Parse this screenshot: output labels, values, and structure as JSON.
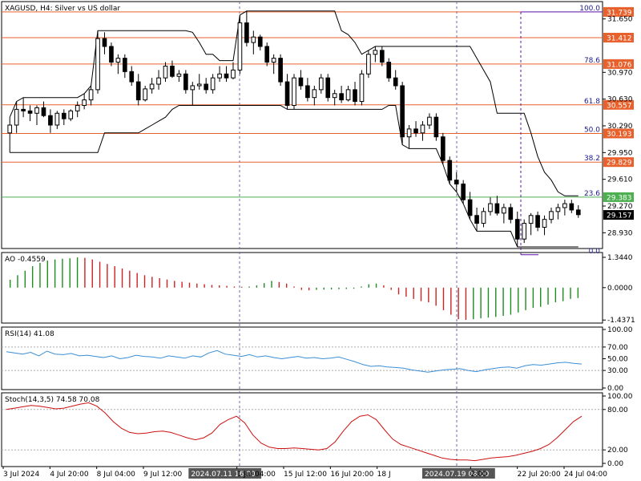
{
  "header": {
    "symbol_title": "XAGUSD, H4:  Silver vs US dollar",
    "ao_label": "AO -0.4559",
    "rsi_label": "RSI(14) 41.08",
    "stoch_label": "Stoch(14,3,5) 74.58 70.08"
  },
  "price_axis": {
    "ticks": [
      "31.650",
      "30.970",
      "30.630",
      "30.290",
      "29.950",
      "29.610",
      "29.270",
      "28.930"
    ],
    "current_price": "29.157",
    "ylim": [
      28.75,
      31.85
    ]
  },
  "ao_axis": {
    "ticks": [
      "1.3440",
      "0.0000",
      "-1.4371"
    ],
    "ylim": [
      -1.5,
      1.45
    ]
  },
  "rsi_axis": {
    "ticks": [
      "100.00",
      "70.00",
      "50.00",
      "30.00",
      "0.00"
    ]
  },
  "stoch_axis": {
    "ticks": [
      "100.00",
      "80.00",
      "20.00",
      "0.00"
    ]
  },
  "fibonacci": {
    "levels": [
      {
        "ratio": "100.0",
        "price": "31.739",
        "value": 31.739
      },
      {
        "ratio": "",
        "price": "31.412",
        "value": 31.412
      },
      {
        "ratio": "78.6",
        "price": "31.076",
        "value": 31.076
      },
      {
        "ratio": "61.8",
        "price": "30.557",
        "value": 30.557
      },
      {
        "ratio": "50.0",
        "price": "30.193",
        "value": 30.193
      },
      {
        "ratio": "38.2",
        "price": "29.829",
        "value": 29.829
      },
      {
        "ratio": "23.6",
        "price": "29.383",
        "value": 29.383
      },
      {
        "ratio": "0.0",
        "price": "",
        "value": 28.65
      }
    ]
  },
  "time_axis": {
    "labels": [
      "3 Jul 2024",
      "4 Jul 20:00",
      "8 Jul 04:00",
      "9 Jul 12:00",
      "2024.07.11 16:00",
      "1 Jul 04:00",
      "15 Jul 12:00",
      "16 Jul 20:00",
      "18 J",
      "2024.07.19 08:00",
      "2:00",
      "22 Jul 20:00",
      "24 Jul 04:00"
    ],
    "highlighted": [
      "2024.07.11 16:00",
      "2024.07.19 08:00"
    ]
  },
  "colors": {
    "bull": "#ffffff",
    "bear": "#000000",
    "fib": "#e8612c",
    "fib_green": "#4caf50",
    "fib_purple": "#5b0fa8",
    "ao_up": "#1e8b1e",
    "ao_down": "#cc2222",
    "rsi": "#3a8fd6",
    "stoch": "#cc1111",
    "grid": "#999999"
  },
  "chart_data": [
    {
      "type": "candlestick",
      "title": "XAGUSD, H4: Silver vs US dollar",
      "ylim": [
        28.75,
        31.85
      ],
      "candles": [
        [
          30.2,
          30.4,
          29.95,
          30.3
        ],
        [
          30.3,
          30.6,
          30.2,
          30.5
        ],
        [
          30.5,
          30.65,
          30.4,
          30.48
        ],
        [
          30.48,
          30.55,
          30.35,
          30.45
        ],
        [
          30.45,
          30.55,
          30.3,
          30.52
        ],
        [
          30.52,
          30.6,
          30.4,
          30.42
        ],
        [
          30.42,
          30.5,
          30.2,
          30.3
        ],
        [
          30.3,
          30.48,
          30.25,
          30.45
        ],
        [
          30.45,
          30.5,
          30.3,
          30.38
        ],
        [
          30.38,
          30.5,
          30.35,
          30.48
        ],
        [
          30.48,
          30.6,
          30.4,
          30.55
        ],
        [
          30.55,
          30.7,
          30.5,
          30.62
        ],
        [
          30.62,
          30.8,
          30.55,
          30.75
        ],
        [
          30.75,
          31.5,
          30.7,
          31.4
        ],
        [
          31.4,
          31.48,
          31.2,
          31.3
        ],
        [
          31.3,
          31.35,
          31.05,
          31.1
        ],
        [
          31.1,
          31.2,
          30.95,
          31.15
        ],
        [
          31.15,
          31.2,
          30.9,
          30.98
        ],
        [
          30.98,
          31.05,
          30.8,
          30.85
        ],
        [
          30.85,
          30.95,
          30.55,
          30.62
        ],
        [
          30.62,
          30.8,
          30.6,
          30.76
        ],
        [
          30.76,
          30.9,
          30.7,
          30.82
        ],
        [
          30.82,
          31.0,
          30.75,
          30.9
        ],
        [
          30.9,
          31.1,
          30.85,
          31.05
        ],
        [
          31.05,
          31.12,
          30.9,
          30.92
        ],
        [
          30.92,
          31.0,
          30.85,
          30.95
        ],
        [
          30.95,
          31.0,
          30.7,
          30.75
        ],
        [
          30.75,
          30.85,
          30.55,
          30.8
        ],
        [
          30.8,
          30.95,
          30.75,
          30.82
        ],
        [
          30.82,
          30.9,
          30.7,
          30.75
        ],
        [
          30.75,
          30.95,
          30.7,
          30.9
        ],
        [
          30.9,
          31.05,
          30.85,
          30.95
        ],
        [
          30.95,
          31.05,
          30.85,
          30.9
        ],
        [
          30.9,
          31.1,
          30.88,
          31.0
        ],
        [
          31.0,
          31.7,
          30.95,
          31.6
        ],
        [
          31.6,
          31.75,
          31.3,
          31.35
        ],
        [
          31.35,
          31.5,
          31.2,
          31.42
        ],
        [
          31.42,
          31.45,
          31.25,
          31.3
        ],
        [
          31.3,
          31.35,
          31.05,
          31.1
        ],
        [
          31.1,
          31.2,
          30.95,
          31.15
        ],
        [
          31.15,
          31.2,
          30.8,
          30.85
        ],
        [
          30.85,
          30.95,
          30.5,
          30.55
        ],
        [
          30.55,
          30.95,
          30.5,
          30.9
        ],
        [
          30.9,
          31.0,
          30.75,
          30.8
        ],
        [
          30.8,
          30.9,
          30.6,
          30.65
        ],
        [
          30.65,
          30.8,
          30.55,
          30.75
        ],
        [
          30.75,
          30.95,
          30.7,
          30.9
        ],
        [
          30.9,
          30.95,
          30.6,
          30.65
        ],
        [
          30.65,
          30.75,
          30.55,
          30.7
        ],
        [
          30.7,
          30.8,
          30.58,
          30.62
        ],
        [
          30.62,
          30.8,
          30.6,
          30.75
        ],
        [
          30.75,
          30.85,
          30.55,
          30.6
        ],
        [
          30.6,
          31.0,
          30.55,
          30.95
        ],
        [
          30.95,
          31.25,
          30.9,
          31.2
        ],
        [
          31.2,
          31.3,
          31.1,
          31.25
        ],
        [
          31.25,
          31.3,
          31.05,
          31.1
        ],
        [
          31.1,
          31.15,
          30.85,
          30.9
        ],
        [
          30.9,
          31.0,
          30.75,
          30.8
        ],
        [
          30.8,
          30.85,
          30.05,
          30.15
        ],
        [
          30.15,
          30.3,
          30.0,
          30.25
        ],
        [
          30.25,
          30.35,
          30.15,
          30.2
        ],
        [
          30.2,
          30.35,
          30.1,
          30.3
        ],
        [
          30.3,
          30.45,
          30.25,
          30.4
        ],
        [
          30.4,
          30.45,
          30.1,
          30.15
        ],
        [
          30.15,
          30.2,
          29.8,
          29.85
        ],
        [
          29.85,
          29.9,
          29.55,
          29.6
        ],
        [
          29.6,
          29.7,
          29.45,
          29.55
        ],
        [
          29.55,
          29.6,
          29.3,
          29.35
        ],
        [
          29.35,
          29.45,
          29.1,
          29.15
        ],
        [
          29.15,
          29.25,
          28.95,
          29.05
        ],
        [
          29.05,
          29.25,
          29.0,
          29.2
        ],
        [
          29.2,
          29.38,
          29.15,
          29.3
        ],
        [
          29.3,
          29.4,
          29.15,
          29.18
        ],
        [
          29.18,
          29.3,
          29.05,
          29.25
        ],
        [
          29.25,
          29.3,
          29.05,
          29.1
        ],
        [
          29.1,
          29.2,
          28.75,
          28.85
        ],
        [
          28.85,
          29.1,
          28.8,
          29.05
        ],
        [
          29.05,
          29.18,
          28.9,
          29.15
        ],
        [
          29.15,
          29.2,
          28.95,
          29.0
        ],
        [
          29.0,
          29.15,
          28.9,
          29.1
        ],
        [
          29.1,
          29.25,
          29.05,
          29.2
        ],
        [
          29.2,
          29.3,
          29.1,
          29.25
        ],
        [
          29.25,
          29.35,
          29.15,
          29.3
        ],
        [
          29.3,
          29.35,
          29.18,
          29.22
        ],
        [
          29.22,
          29.28,
          29.12,
          29.16
        ]
      ]
    },
    {
      "type": "bar",
      "title": "AO -0.4559",
      "ylim": [
        -1.5,
        1.45
      ],
      "values": [
        0.35,
        0.55,
        0.75,
        0.95,
        1.1,
        1.2,
        1.25,
        1.28,
        1.3,
        1.34,
        1.32,
        1.25,
        1.15,
        1.05,
        0.95,
        0.85,
        0.75,
        0.65,
        0.55,
        0.48,
        0.42,
        0.36,
        0.3,
        0.26,
        0.22,
        0.18,
        0.15,
        0.12,
        0.1,
        0.08,
        0.05,
        0.04,
        0.05,
        0.1,
        0.2,
        0.3,
        0.25,
        0.18,
        0.05,
        -0.1,
        -0.12,
        -0.1,
        -0.09,
        -0.08,
        -0.07,
        -0.06,
        -0.05,
        0.05,
        0.15,
        0.18,
        0.1,
        -0.1,
        -0.3,
        -0.4,
        -0.5,
        -0.6,
        -0.65,
        -0.8,
        -1.0,
        -1.2,
        -1.4,
        -1.43,
        -1.4,
        -1.36,
        -1.33,
        -1.3,
        -1.25,
        -1.2,
        -1.1,
        -1.0,
        -0.9,
        -0.85,
        -0.75,
        -0.65,
        -0.6,
        -0.5,
        -0.46
      ]
    },
    {
      "type": "line",
      "title": "RSI(14) 41.08",
      "ylim": [
        0,
        100
      ],
      "values": [
        62,
        60,
        58,
        61,
        55,
        63,
        58,
        57,
        59,
        55,
        56,
        54,
        52,
        55,
        50,
        52,
        56,
        54,
        53,
        51,
        55,
        53,
        51,
        55,
        53,
        60,
        64,
        58,
        56,
        54,
        57,
        53,
        55,
        52,
        50,
        52,
        54,
        51,
        52,
        50,
        51,
        53,
        49,
        45,
        40,
        37,
        38,
        36,
        35,
        34,
        31,
        29,
        27,
        29,
        31,
        32,
        33,
        30,
        28,
        31,
        33,
        35,
        36,
        34,
        38,
        40,
        39,
        41,
        43,
        44,
        42,
        41
      ]
    },
    {
      "type": "line",
      "title": "Stoch(14,3,5) 74.58 70.08",
      "ylim": [
        0,
        100
      ],
      "values": [
        80,
        82,
        84,
        86,
        85,
        83,
        81,
        82,
        85,
        88,
        90,
        85,
        75,
        62,
        52,
        46,
        44,
        45,
        47,
        48,
        46,
        42,
        38,
        35,
        38,
        45,
        58,
        65,
        70,
        60,
        42,
        30,
        24,
        22,
        22,
        23,
        22,
        21,
        20,
        22,
        32,
        48,
        62,
        70,
        72,
        65,
        50,
        36,
        28,
        24,
        20,
        16,
        12,
        8,
        6,
        5,
        5,
        4,
        6,
        8,
        9,
        10,
        12,
        15,
        18,
        22,
        28,
        38,
        50,
        62,
        70
      ]
    }
  ]
}
